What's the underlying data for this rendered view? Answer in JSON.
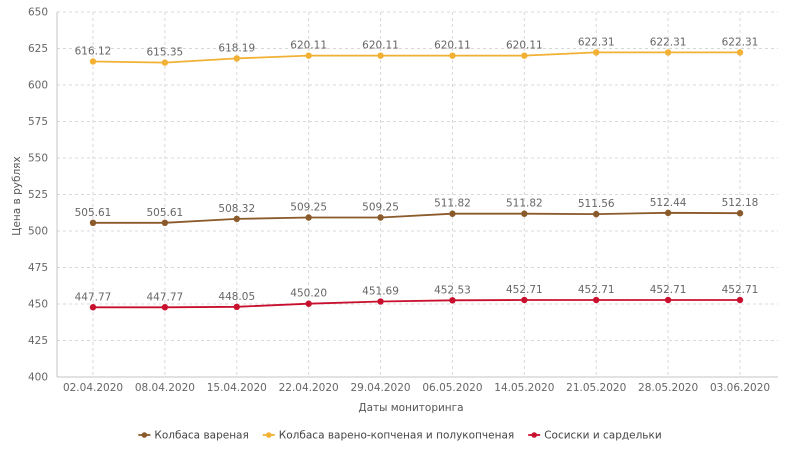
{
  "chart_data": {
    "type": "line",
    "xlabel": "Даты мониторинга",
    "ylabel": "Цена в рублях",
    "ylim": [
      400,
      650
    ],
    "yticks": [
      400,
      425,
      450,
      475,
      500,
      525,
      550,
      575,
      600,
      625,
      650
    ],
    "categories": [
      "02.04.2020",
      "08.04.2020",
      "15.04.2020",
      "22.04.2020",
      "29.04.2020",
      "06.05.2020",
      "14.05.2020",
      "21.05.2020",
      "28.05.2020",
      "03.06.2020"
    ],
    "grid": true,
    "legend_position": "bottom",
    "series": [
      {
        "name": "Колбаса вареная",
        "color": "#8B5A2B",
        "values": [
          505.61,
          505.61,
          508.32,
          509.25,
          509.25,
          511.82,
          511.82,
          511.56,
          512.44,
          512.18
        ],
        "labels": [
          "505.61",
          "505.61",
          "508.32",
          "509.25",
          "509.25",
          "511.82",
          "511.82",
          "511.56",
          "512.44",
          "512.18"
        ]
      },
      {
        "name": "Колбаса варено-копченая и полукопченая",
        "color": "#F2B134",
        "values": [
          616.12,
          615.35,
          618.19,
          620.11,
          620.11,
          620.11,
          620.11,
          622.31,
          622.31,
          622.31
        ],
        "labels": [
          "616.12",
          "615.35",
          "618.19",
          "620.11",
          "620.11",
          "620.11",
          "620.11",
          "622.31",
          "622.31",
          "622.31"
        ]
      },
      {
        "name": "Сосиски и сардельки",
        "color": "#C8102E",
        "values": [
          447.77,
          447.77,
          448.05,
          450.2,
          451.69,
          452.53,
          452.71,
          452.71,
          452.71,
          452.71
        ],
        "labels": [
          "447.77",
          "447.77",
          "448.05",
          "450.20",
          "451.69",
          "452.53",
          "452.71",
          "452.71",
          "452.71",
          "452.71"
        ]
      }
    ]
  }
}
